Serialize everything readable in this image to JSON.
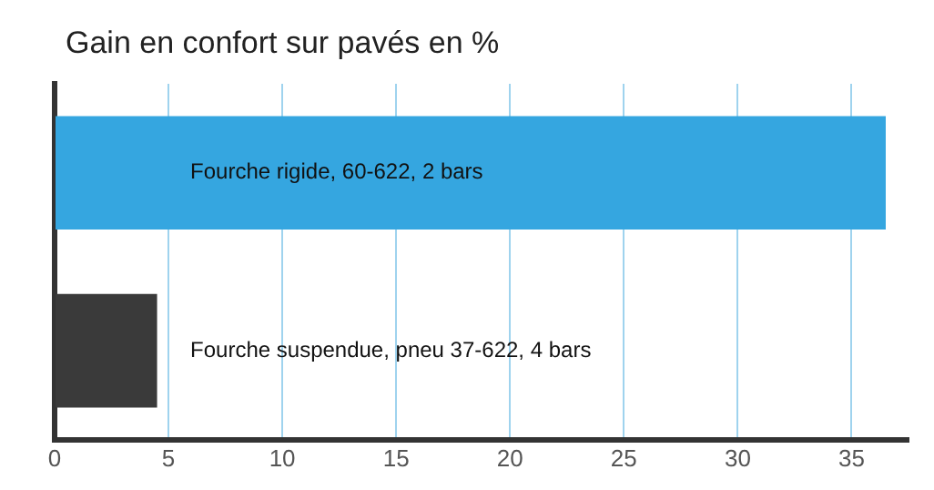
{
  "chart_data": {
    "type": "bar",
    "orientation": "horizontal",
    "title": "Gain en confort sur pavés en %",
    "categories": [
      "Fourche rigide, 60-622, 2 bars",
      "Fourche suspendue, pneu 37-622, 4 bars"
    ],
    "values": [
      36.5,
      4.5
    ],
    "colors": [
      "#35a6e0",
      "#3a3a3a"
    ],
    "xlim": [
      0,
      37.5
    ],
    "xticks": [
      0,
      5,
      10,
      15,
      20,
      25,
      30,
      35
    ],
    "grid": "x",
    "tick_labels": "x",
    "legend": false
  }
}
